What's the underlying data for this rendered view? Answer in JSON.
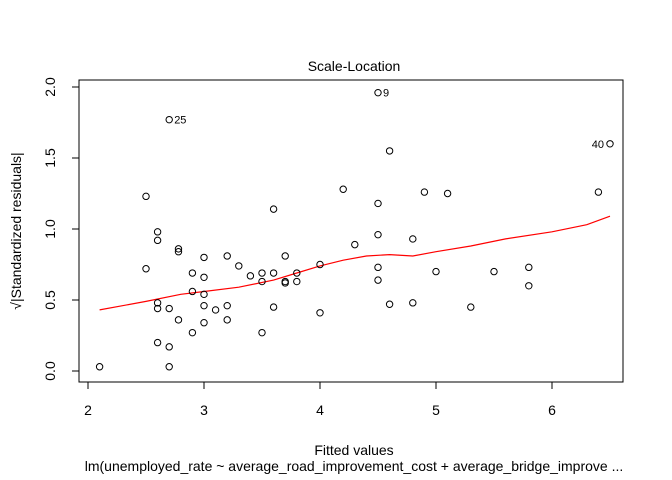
{
  "chart_data": {
    "type": "scatter",
    "title": "Scale-Location",
    "xlabel": "Fitted values",
    "ylabel": "√|Standardized residuals|",
    "subtitle": "lm(unemployed_rate ~ average_road_improvement_cost + average_bridge_improve ...",
    "xlim": [
      2.0,
      6.55
    ],
    "ylim": [
      -0.05,
      2.05
    ],
    "x_ticks": [
      2,
      3,
      4,
      5,
      6
    ],
    "y_ticks": [
      0.0,
      0.5,
      1.0,
      1.5,
      2.0
    ],
    "x_tick_labels": [
      "2",
      "3",
      "4",
      "5",
      "6"
    ],
    "y_tick_labels": [
      "0.0",
      "0.5",
      "1.0",
      "1.5",
      "2.0"
    ],
    "grid": false,
    "point_color": "#000000",
    "smooth_color": "#ff0000",
    "points": [
      {
        "x": 2.1,
        "y": 0.03
      },
      {
        "x": 2.5,
        "y": 1.23
      },
      {
        "x": 2.5,
        "y": 0.72
      },
      {
        "x": 2.6,
        "y": 0.98
      },
      {
        "x": 2.6,
        "y": 0.92
      },
      {
        "x": 2.6,
        "y": 0.48
      },
      {
        "x": 2.6,
        "y": 0.44
      },
      {
        "x": 2.6,
        "y": 0.2
      },
      {
        "x": 2.7,
        "y": 1.77,
        "label": "25"
      },
      {
        "x": 2.7,
        "y": 0.44
      },
      {
        "x": 2.7,
        "y": 0.17
      },
      {
        "x": 2.7,
        "y": 0.03
      },
      {
        "x": 2.78,
        "y": 0.86
      },
      {
        "x": 2.78,
        "y": 0.84
      },
      {
        "x": 2.78,
        "y": 0.36
      },
      {
        "x": 2.9,
        "y": 0.69
      },
      {
        "x": 2.9,
        "y": 0.56
      },
      {
        "x": 2.9,
        "y": 0.27
      },
      {
        "x": 3.0,
        "y": 0.8
      },
      {
        "x": 3.0,
        "y": 0.66
      },
      {
        "x": 3.0,
        "y": 0.54
      },
      {
        "x": 3.0,
        "y": 0.46
      },
      {
        "x": 3.0,
        "y": 0.34
      },
      {
        "x": 3.1,
        "y": 0.43
      },
      {
        "x": 3.2,
        "y": 0.81
      },
      {
        "x": 3.2,
        "y": 0.46
      },
      {
        "x": 3.2,
        "y": 0.36
      },
      {
        "x": 3.3,
        "y": 0.74
      },
      {
        "x": 3.4,
        "y": 0.67
      },
      {
        "x": 3.5,
        "y": 0.69
      },
      {
        "x": 3.5,
        "y": 0.63
      },
      {
        "x": 3.5,
        "y": 0.27
      },
      {
        "x": 3.6,
        "y": 1.14
      },
      {
        "x": 3.6,
        "y": 0.69
      },
      {
        "x": 3.6,
        "y": 0.45
      },
      {
        "x": 3.7,
        "y": 0.81
      },
      {
        "x": 3.7,
        "y": 0.63
      },
      {
        "x": 3.7,
        "y": 0.62
      },
      {
        "x": 3.8,
        "y": 0.69
      },
      {
        "x": 3.8,
        "y": 0.63
      },
      {
        "x": 4.0,
        "y": 0.75
      },
      {
        "x": 4.0,
        "y": 0.41
      },
      {
        "x": 4.2,
        "y": 1.28
      },
      {
        "x": 4.3,
        "y": 0.89
      },
      {
        "x": 4.5,
        "y": 1.96,
        "label": "9"
      },
      {
        "x": 4.5,
        "y": 1.18
      },
      {
        "x": 4.5,
        "y": 0.96
      },
      {
        "x": 4.5,
        "y": 0.73
      },
      {
        "x": 4.5,
        "y": 0.64
      },
      {
        "x": 4.6,
        "y": 1.55
      },
      {
        "x": 4.6,
        "y": 0.47
      },
      {
        "x": 4.8,
        "y": 0.93
      },
      {
        "x": 4.8,
        "y": 0.48
      },
      {
        "x": 4.9,
        "y": 1.26
      },
      {
        "x": 5.0,
        "y": 0.7
      },
      {
        "x": 5.1,
        "y": 1.25
      },
      {
        "x": 5.3,
        "y": 0.45
      },
      {
        "x": 5.5,
        "y": 0.7
      },
      {
        "x": 5.8,
        "y": 0.73
      },
      {
        "x": 5.8,
        "y": 0.6
      },
      {
        "x": 6.4,
        "y": 1.26
      },
      {
        "x": 6.5,
        "y": 1.6,
        "label": "40"
      }
    ],
    "smooth_line": [
      {
        "x": 2.1,
        "y": 0.43
      },
      {
        "x": 2.5,
        "y": 0.49
      },
      {
        "x": 2.8,
        "y": 0.54
      },
      {
        "x": 3.0,
        "y": 0.56
      },
      {
        "x": 3.3,
        "y": 0.59
      },
      {
        "x": 3.6,
        "y": 0.64
      },
      {
        "x": 3.8,
        "y": 0.69
      },
      {
        "x": 4.0,
        "y": 0.74
      },
      {
        "x": 4.2,
        "y": 0.78
      },
      {
        "x": 4.4,
        "y": 0.81
      },
      {
        "x": 4.6,
        "y": 0.82
      },
      {
        "x": 4.8,
        "y": 0.81
      },
      {
        "x": 5.0,
        "y": 0.84
      },
      {
        "x": 5.3,
        "y": 0.88
      },
      {
        "x": 5.6,
        "y": 0.93
      },
      {
        "x": 6.0,
        "y": 0.98
      },
      {
        "x": 6.3,
        "y": 1.03
      },
      {
        "x": 6.5,
        "y": 1.09
      }
    ]
  }
}
